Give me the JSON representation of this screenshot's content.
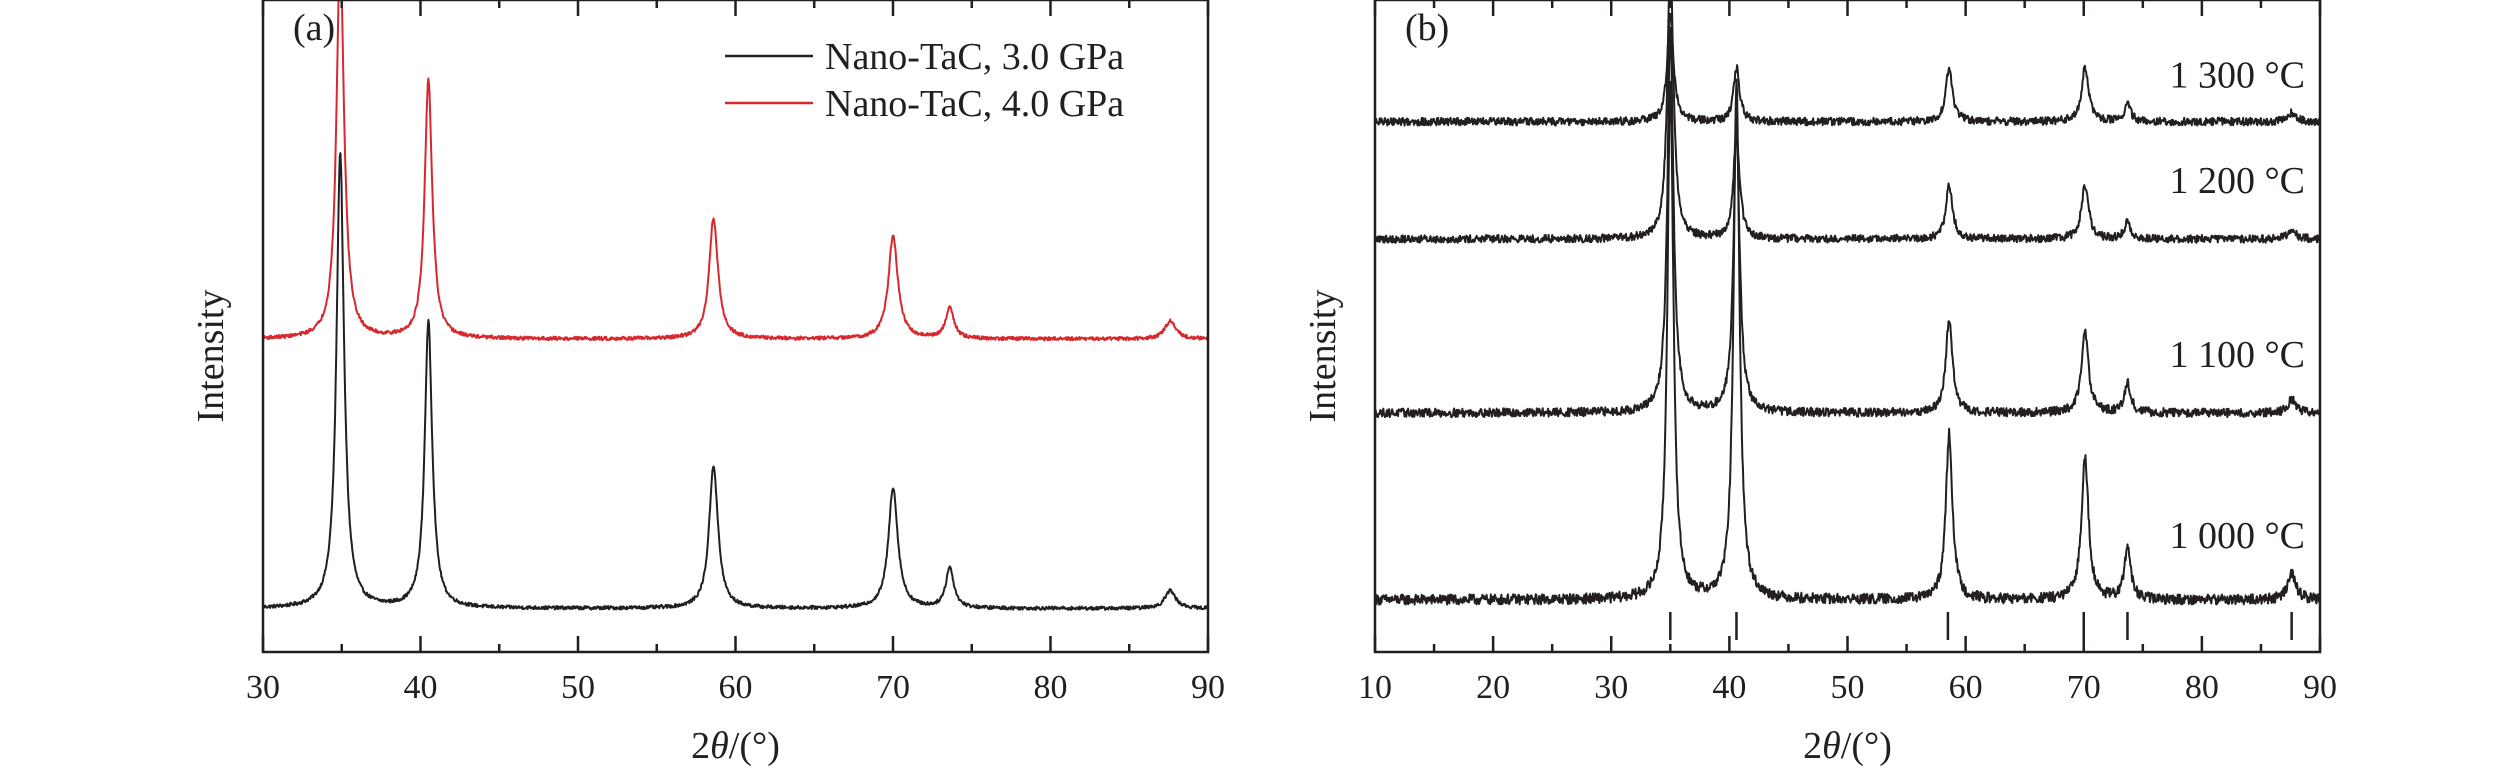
{
  "colors": {
    "black": "#231f20",
    "red": "#d7282e"
  },
  "chart_data": [
    {
      "panel": "(a)",
      "type": "line",
      "xlabel_prefix": "2",
      "xlabel_theta": "θ",
      "xlabel_suffix": "/(°)",
      "ylabel": "Intensity",
      "xlim": [
        30,
        90
      ],
      "xticks": [
        30,
        40,
        50,
        60,
        70,
        80,
        90
      ],
      "ylim": [
        0,
        1.5
      ],
      "y_tick_labels": false,
      "legend_position": "top-right",
      "peaks": [
        {
          "pos": 34.9,
          "width": 0.28
        },
        {
          "pos": 40.5,
          "width": 0.28
        },
        {
          "pos": 58.6,
          "width": 0.33
        },
        {
          "pos": 70.0,
          "width": 0.35
        },
        {
          "pos": 73.6,
          "width": 0.3
        },
        {
          "pos": 87.6,
          "width": 0.4
        }
      ],
      "series": [
        {
          "name": "Nano-TaC, 3.0 GPa",
          "color": "#231f20",
          "baseline": 0.1,
          "noise": 0.004,
          "heights": [
            1.02,
            0.64,
            0.32,
            0.27,
            0.09,
            0.04
          ]
        },
        {
          "name": "Nano-TaC, 4.0 GPa",
          "color": "#d7282e",
          "baseline": 0.72,
          "noise": 0.004,
          "heights": [
            0.87,
            0.58,
            0.27,
            0.23,
            0.07,
            0.04
          ]
        }
      ]
    },
    {
      "panel": "(b)",
      "type": "line",
      "xlabel_prefix": "2",
      "xlabel_theta": "θ",
      "xlabel_suffix": "/(°)",
      "ylabel": "Intensity",
      "xlim": [
        10,
        90
      ],
      "xticks": [
        10,
        20,
        30,
        40,
        50,
        60,
        70,
        80,
        90
      ],
      "ylim": [
        0,
        1.5
      ],
      "y_tick_labels": false,
      "peaks": [
        {
          "pos": 35.0,
          "width": 0.3
        },
        {
          "pos": 40.6,
          "width": 0.3
        },
        {
          "pos": 58.6,
          "width": 0.33
        },
        {
          "pos": 70.1,
          "width": 0.35
        },
        {
          "pos": 73.7,
          "width": 0.3
        },
        {
          "pos": 87.6,
          "width": 0.4
        }
      ],
      "reference_lines": [
        35.0,
        40.6,
        58.5,
        70.0,
        73.7,
        87.6
      ],
      "series": [
        {
          "name": "1 000 °C",
          "color": "#231f20",
          "baseline": 0.12,
          "noise": 0.012,
          "heights": [
            1.15,
            1.15,
            0.37,
            0.32,
            0.12,
            0.06
          ]
        },
        {
          "name": "1 100 °C",
          "color": "#231f20",
          "baseline": 0.55,
          "noise": 0.01,
          "heights": [
            0.85,
            0.65,
            0.21,
            0.18,
            0.07,
            0.03
          ]
        },
        {
          "name": "1 200 °C",
          "color": "#231f20",
          "baseline": 0.95,
          "noise": 0.009,
          "heights": [
            0.62,
            0.24,
            0.12,
            0.12,
            0.04,
            0.02
          ]
        },
        {
          "name": "1 300 °C",
          "color": "#231f20",
          "baseline": 1.22,
          "noise": 0.009,
          "heights": [
            0.24,
            0.12,
            0.12,
            0.12,
            0.04,
            0.02
          ]
        }
      ]
    }
  ]
}
